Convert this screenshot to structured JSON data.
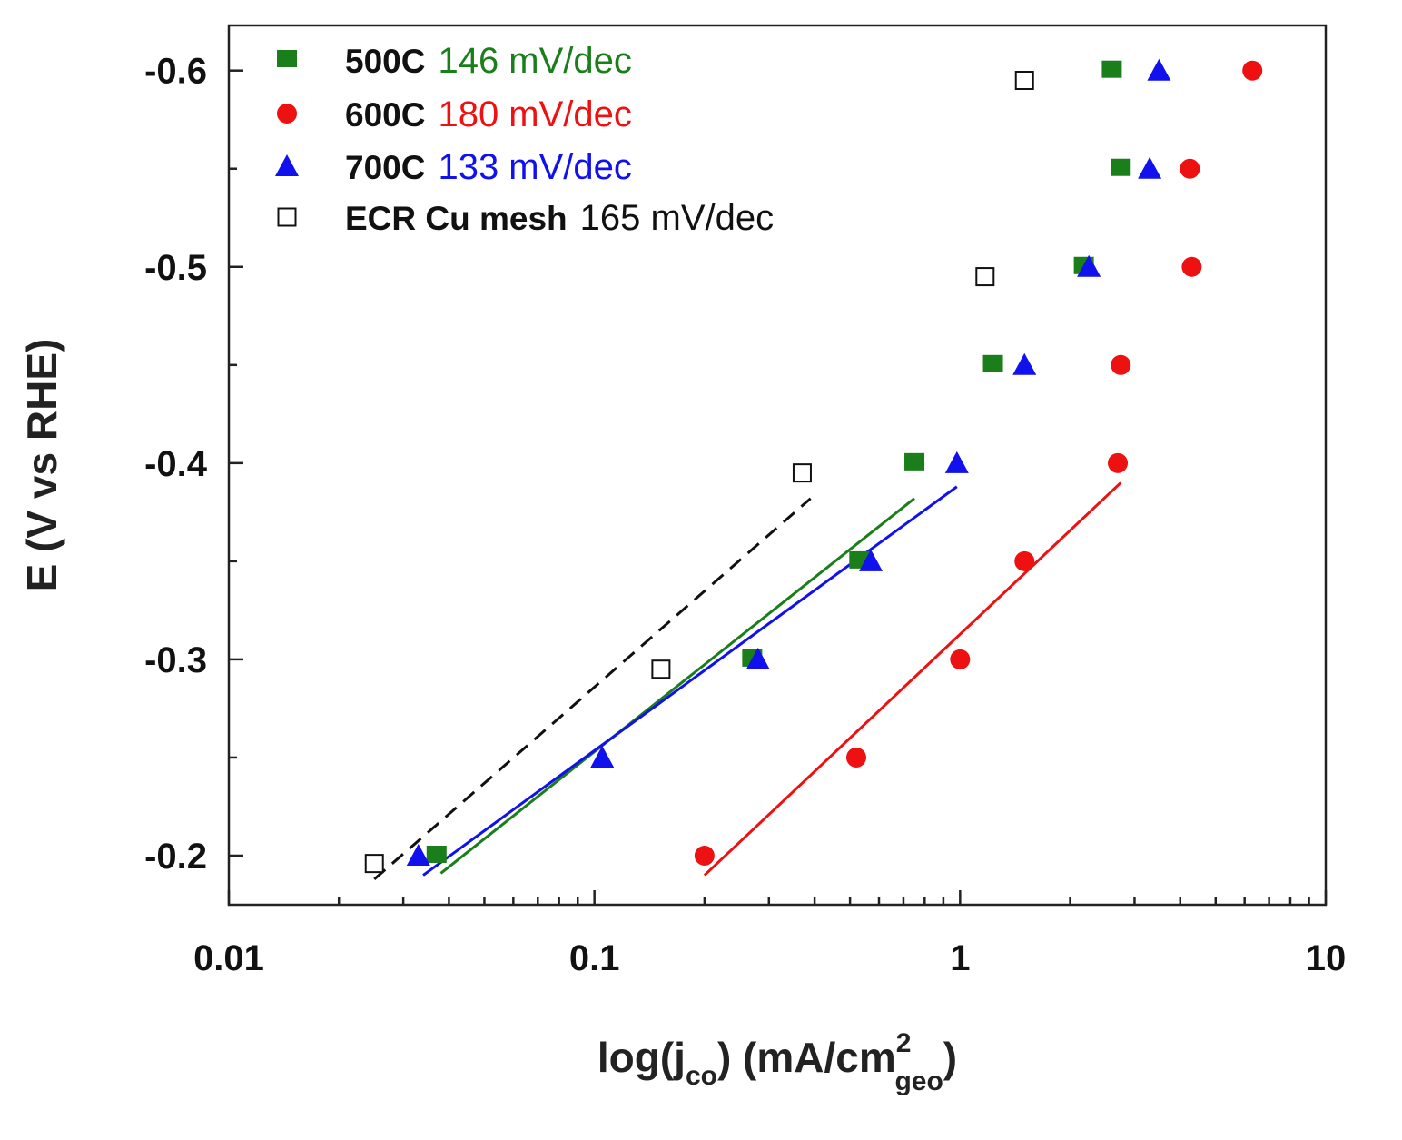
{
  "chart_data": {
    "type": "scatter",
    "xscale": "log",
    "xlim": [
      0.01,
      10
    ],
    "ylim": [
      -0.175,
      -0.623
    ],
    "xticks": [
      0.01,
      0.1,
      1,
      10
    ],
    "xtick_labels": [
      "0.01",
      "0.1",
      "1",
      "10"
    ],
    "yticks": [
      -0.2,
      -0.3,
      -0.4,
      -0.5,
      -0.6
    ],
    "ytick_labels": [
      "-0.2",
      "-0.3",
      "-0.4",
      "-0.5",
      "-0.6"
    ],
    "xlabel": {
      "main": "log(j",
      "sub": "co",
      "mid": ") (mA/cm",
      "sup": "2",
      "sub2": "geo",
      "end": ")"
    },
    "ylabel": "E (V vs RHE)",
    "grid": false,
    "legend_position": "top-left",
    "series": [
      {
        "name": "500C",
        "slope": "146 mV/dec",
        "marker": "square-filled",
        "color": "#1a7f1a",
        "points": [
          [
            0.037,
            -0.2
          ],
          [
            0.27,
            -0.3
          ],
          [
            0.53,
            -0.35
          ],
          [
            0.75,
            -0.4
          ],
          [
            1.23,
            -0.45
          ],
          [
            2.18,
            -0.5
          ],
          [
            2.75,
            -0.55
          ],
          [
            2.6,
            -0.6
          ]
        ],
        "fit": [
          [
            0.038,
            -0.191
          ],
          [
            0.75,
            -0.382
          ]
        ]
      },
      {
        "name": "600C",
        "slope": "180 mV/dec",
        "marker": "circle-filled",
        "color": "#ee1111",
        "points": [
          [
            0.2,
            -0.2
          ],
          [
            0.52,
            -0.25
          ],
          [
            1.0,
            -0.3
          ],
          [
            1.5,
            -0.35
          ],
          [
            2.7,
            -0.4
          ],
          [
            2.75,
            -0.45
          ],
          [
            4.3,
            -0.5
          ],
          [
            4.25,
            -0.55
          ],
          [
            6.3,
            -0.6
          ]
        ],
        "fit": [
          [
            0.2,
            -0.19
          ],
          [
            2.75,
            -0.39
          ]
        ]
      },
      {
        "name": "700C",
        "slope": "133 mV/dec",
        "marker": "triangle-filled",
        "color": "#1111ee",
        "points": [
          [
            0.033,
            -0.2
          ],
          [
            0.105,
            -0.25
          ],
          [
            0.28,
            -0.3
          ],
          [
            0.57,
            -0.35
          ],
          [
            0.98,
            -0.4
          ],
          [
            1.5,
            -0.45
          ],
          [
            2.25,
            -0.5
          ],
          [
            3.3,
            -0.55
          ],
          [
            3.5,
            -0.6
          ]
        ],
        "fit": [
          [
            0.034,
            -0.19
          ],
          [
            0.98,
            -0.388
          ]
        ]
      },
      {
        "name": "ECR Cu mesh",
        "slope": "165 mV/dec",
        "marker": "square-open",
        "color": "#111111",
        "points": [
          [
            0.025,
            -0.196
          ],
          [
            0.152,
            -0.295
          ],
          [
            0.37,
            -0.395
          ],
          [
            1.17,
            -0.495
          ],
          [
            1.5,
            -0.595
          ]
        ],
        "fit": [
          [
            0.025,
            -0.188
          ],
          [
            0.39,
            -0.382
          ]
        ],
        "fit_style": "dashed"
      }
    ]
  }
}
